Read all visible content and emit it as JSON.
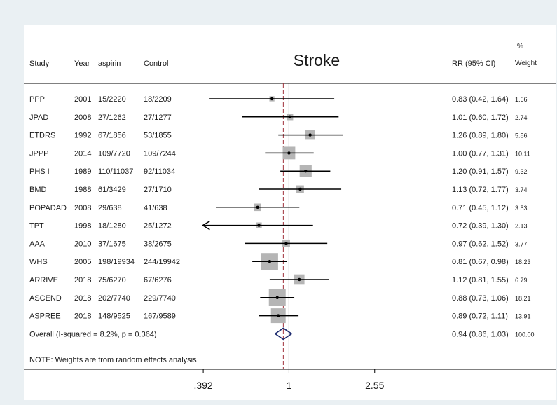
{
  "header": {
    "study": "Study",
    "year": "Year",
    "treatment": "aspirin",
    "control": "Control",
    "title": "Stroke",
    "rr": "RR (95% CI)",
    "weight_pct": "%",
    "weight": "Weight"
  },
  "note": "NOTE: Weights are from random effects analysis",
  "colors": {
    "box": "#b5b5b5",
    "line": "#000000",
    "diamond": "#1c2a6e",
    "null_line": "#000000",
    "overall_line": "#a0323c",
    "background": "#eaf0f3",
    "panel": "#ffffff"
  },
  "chart_data": {
    "type": "forest",
    "title": "Stroke",
    "x_scale": "log",
    "xlim": [
      0.326,
      3.07
    ],
    "x_ticks": [
      0.392,
      1,
      2.55
    ],
    "x_tick_labels": [
      ".392",
      "1",
      "2.55"
    ],
    "null_value": 1,
    "overall_line_value": 0.94,
    "studies": [
      {
        "study": "PPP",
        "year": "2001",
        "treatment": "15/2220",
        "control": "18/2209",
        "rr": 0.83,
        "lo": 0.42,
        "hi": 1.64,
        "ci_text": "0.83 (0.42, 1.64)",
        "weight": 1.66,
        "weight_text": "1.66"
      },
      {
        "study": "JPAD",
        "year": "2008",
        "treatment": "27/1262",
        "control": "27/1277",
        "rr": 1.01,
        "lo": 0.6,
        "hi": 1.72,
        "ci_text": "1.01 (0.60, 1.72)",
        "weight": 2.74,
        "weight_text": "2.74"
      },
      {
        "study": "ETDRS",
        "year": "1992",
        "treatment": "67/1856",
        "control": "53/1855",
        "rr": 1.26,
        "lo": 0.89,
        "hi": 1.8,
        "ci_text": "1.26 (0.89, 1.80)",
        "weight": 5.86,
        "weight_text": "5.86"
      },
      {
        "study": "JPPP",
        "year": "2014",
        "treatment": "109/7720",
        "control": "109/7244",
        "rr": 1.0,
        "lo": 0.77,
        "hi": 1.31,
        "ci_text": "1.00 (0.77, 1.31)",
        "weight": 10.11,
        "weight_text": "10.11"
      },
      {
        "study": "PHS I",
        "year": "1989",
        "treatment": "110/11037",
        "control": "92/11034",
        "rr": 1.2,
        "lo": 0.91,
        "hi": 1.57,
        "ci_text": "1.20 (0.91, 1.57)",
        "weight": 9.32,
        "weight_text": "9.32"
      },
      {
        "study": "BMD",
        "year": "1988",
        "treatment": "61/3429",
        "control": "27/1710",
        "rr": 1.13,
        "lo": 0.72,
        "hi": 1.77,
        "ci_text": "1.13 (0.72, 1.77)",
        "weight": 3.74,
        "weight_text": "3.74"
      },
      {
        "study": "POPADAD",
        "year": "2008",
        "treatment": "29/638",
        "control": "41/638",
        "rr": 0.71,
        "lo": 0.45,
        "hi": 1.12,
        "ci_text": "0.71 (0.45, 1.12)",
        "weight": 3.53,
        "weight_text": "3.53"
      },
      {
        "study": "TPT",
        "year": "1998",
        "treatment": "18/1280",
        "control": "25/1272",
        "rr": 0.72,
        "lo": 0.39,
        "hi": 1.3,
        "ci_text": "0.72 (0.39, 1.30)",
        "weight": 2.13,
        "weight_text": "2.13",
        "lower_arrow": true
      },
      {
        "study": "AAA",
        "year": "2010",
        "treatment": "37/1675",
        "control": "38/2675",
        "rr": 0.97,
        "lo": 0.62,
        "hi": 1.52,
        "ci_text": "0.97 (0.62, 1.52)",
        "weight": 3.77,
        "weight_text": "3.77"
      },
      {
        "study": "WHS",
        "year": "2005",
        "treatment": "198/19934",
        "control": "244/19942",
        "rr": 0.81,
        "lo": 0.67,
        "hi": 0.98,
        "ci_text": "0.81 (0.67, 0.98)",
        "weight": 18.23,
        "weight_text": "18.23"
      },
      {
        "study": "ARRIVE",
        "year": "2018",
        "treatment": "75/6270",
        "control": "67/6276",
        "rr": 1.12,
        "lo": 0.81,
        "hi": 1.55,
        "ci_text": "1.12 (0.81, 1.55)",
        "weight": 6.79,
        "weight_text": "6.79"
      },
      {
        "study": "ASCEND",
        "year": "2018",
        "treatment": "202/7740",
        "control": "229/7740",
        "rr": 0.88,
        "lo": 0.73,
        "hi": 1.06,
        "ci_text": "0.88 (0.73, 1.06)",
        "weight": 18.21,
        "weight_text": "18.21"
      },
      {
        "study": "ASPREE",
        "year": "2018",
        "treatment": "148/9525",
        "control": "167/9589",
        "rr": 0.89,
        "lo": 0.72,
        "hi": 1.11,
        "ci_text": "0.89 (0.72, 1.11)",
        "weight": 13.91,
        "weight_text": "13.91"
      }
    ],
    "overall": {
      "label": "Overall  (I-squared = 8.2%, p = 0.364)",
      "rr": 0.94,
      "lo": 0.86,
      "hi": 1.03,
      "ci_text": "0.94 (0.86, 1.03)",
      "weight": 100.0,
      "weight_text": "100.00"
    }
  }
}
